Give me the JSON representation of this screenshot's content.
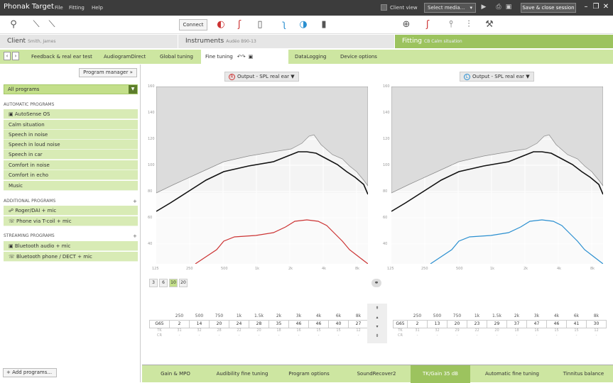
{
  "app": {
    "title": "Phonak Target"
  },
  "menu": [
    "File",
    "Fitting",
    "Help"
  ],
  "titlebar": {
    "client_view": "Client view",
    "select_media": "Select media...",
    "save_close": "Save & close session"
  },
  "toolbar": {
    "connect": "Connect"
  },
  "sections": {
    "client": {
      "label": "Client",
      "value": "Smith, James"
    },
    "instruments": {
      "label": "Instruments",
      "value": "Audéo B90-13"
    },
    "fitting": {
      "label": "Fitting",
      "value": "CB Calm situation"
    }
  },
  "tabs": [
    {
      "label": "Feedback & real ear test"
    },
    {
      "label": "AudiogramDirect"
    },
    {
      "label": "Global tuning"
    },
    {
      "label": "Fine tuning"
    },
    {
      "label": "DataLogging"
    },
    {
      "label": "Device options"
    }
  ],
  "sidebar": {
    "program_manager": "Program manager",
    "all_programs": "All programs",
    "automatic_header": "AUTOMATIC PROGRAMS",
    "automatic": [
      "AutoSense OS",
      "Calm situation",
      "Speech in noise",
      "Speech in loud noise",
      "Speech in car",
      "Comfort in noise",
      "Comfort in echo",
      "Music"
    ],
    "additional_header": "ADDITIONAL PROGRAMS",
    "additional": [
      "Roger/DAI + mic",
      "Phone via T-coil + mic"
    ],
    "streaming_header": "STREAMING PROGRAMS",
    "streaming": [
      "Bluetooth audio + mic",
      "Bluetooth phone / DECT + mic"
    ],
    "add_programs": "Add programs..."
  },
  "graphs": {
    "right_label": "Output - SPL real ear",
    "left_label": "Output - SPL real ear",
    "right_badge": "R",
    "left_badge": "L",
    "right_color": "#cc3333",
    "left_color": "#2a8fd0",
    "y_ticks": [
      "160",
      "140",
      "120",
      "100",
      "80",
      "60",
      "40"
    ],
    "x_ticks": [
      "125",
      "250",
      "500",
      "1k",
      "2k",
      "4k",
      "8k"
    ]
  },
  "resolution": [
    "3",
    "6",
    "10",
    "20"
  ],
  "table_right": {
    "freqs": [
      "250",
      "500",
      "750",
      "1k",
      "1.5k",
      "2k",
      "3k",
      "4k",
      "6k",
      "8k"
    ],
    "g65_label": "G65",
    "g65": [
      "2",
      "14",
      "20",
      "24",
      "28",
      "35",
      "46",
      "46",
      "40",
      "27"
    ],
    "tk_label": "TK",
    "tk": [
      "31",
      "32",
      "28",
      "22",
      "20",
      "18",
      "16",
      "15",
      "15",
      "12"
    ],
    "cr_label": "CR",
    "cr": [
      "-",
      "-",
      "-",
      "-",
      "-",
      "-",
      "-",
      "-",
      "-",
      "-"
    ]
  },
  "table_left": {
    "freqs": [
      "250",
      "500",
      "750",
      "1k",
      "1.5k",
      "2k",
      "3k",
      "4k",
      "6k",
      "8k"
    ],
    "g65_label": "G65",
    "g65": [
      "2",
      "13",
      "20",
      "23",
      "29",
      "37",
      "47",
      "46",
      "41",
      "30"
    ],
    "tk_label": "TK",
    "tk": [
      "31",
      "32",
      "29",
      "22",
      "20",
      "18",
      "16",
      "15",
      "15",
      "12"
    ],
    "cr_label": "CR",
    "cr": [
      "-",
      "-",
      "-",
      "-",
      "-",
      "-",
      "-",
      "-",
      "-",
      "-"
    ]
  },
  "bottom_tabs": [
    "Gain & MPO",
    "Audibility fine tuning",
    "Program options",
    "SoundRecover2",
    "TK/Gain 35 dB",
    "Automatic fine tuning",
    "Tinnitus balance"
  ]
}
